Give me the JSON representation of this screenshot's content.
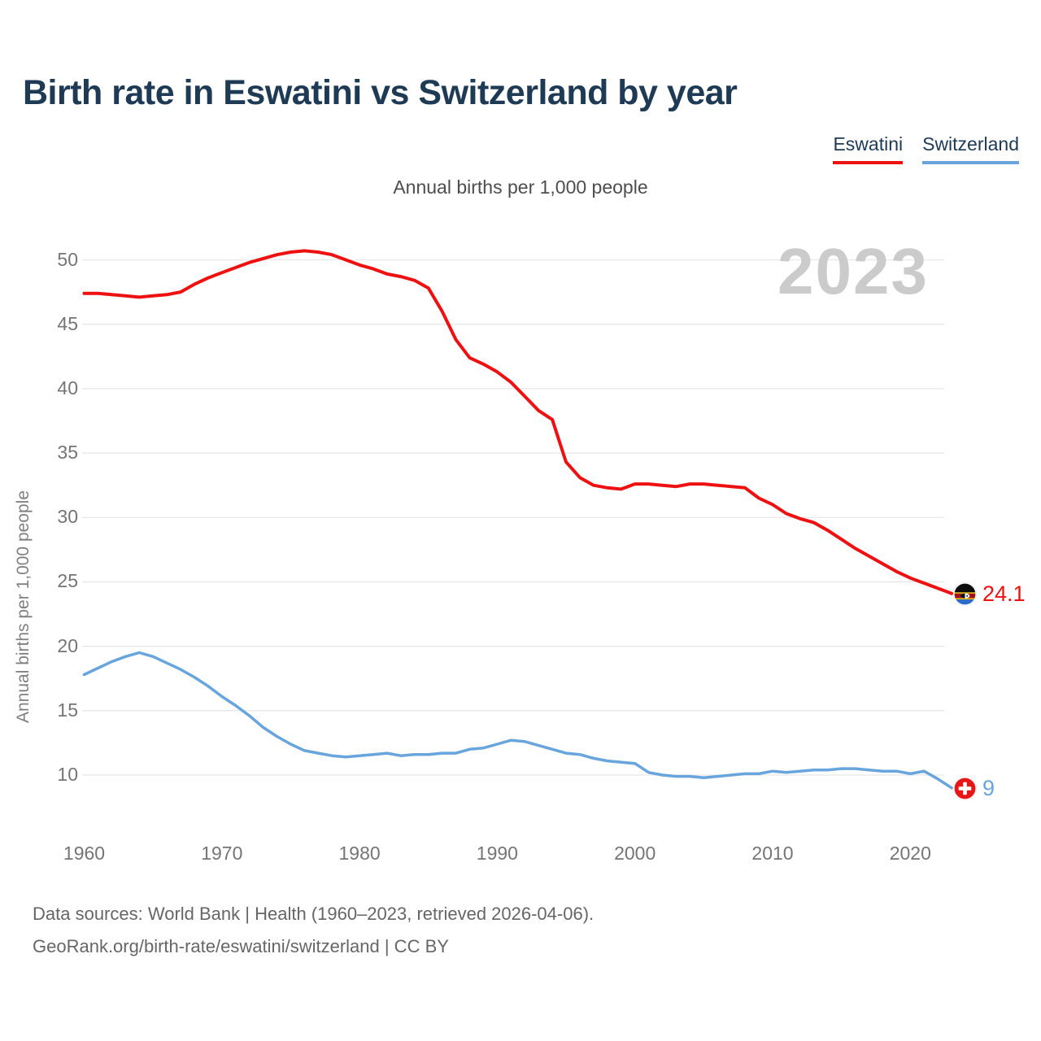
{
  "title": "Birth rate in Eswatini vs Switzerland by year",
  "subtitle": "Annual births per 1,000 people",
  "watermark_year": "2023",
  "legend": [
    {
      "label": "Eswatini",
      "color": "#ee1111"
    },
    {
      "label": "Switzerland",
      "color": "#68a5dc"
    }
  ],
  "colors": {
    "title_navy": "#1e3a55",
    "eswatini_red": "#ee1111",
    "switzerland_blue": "#68a5dc",
    "gridline": "#e7e7e7",
    "axis_text": "#757575",
    "watermark_gray": "#cbcbcb"
  },
  "icons": {
    "eswatini_marker": "eswatini-flag-icon",
    "switzerland_marker": "switzerland-flag-icon"
  },
  "footer": {
    "line1": "Data sources: World Bank | Health (1960–2023, retrieved 2026-04-06).",
    "line2": "GeoRank.org/birth-rate/eswatini/switzerland | CC BY"
  },
  "chart_data": {
    "type": "line",
    "title": "Birth rate in Eswatini vs Switzerland by year",
    "ylabel": "Annual births per 1,000 people",
    "xlabel": "",
    "grid": true,
    "legend_position": "top-right",
    "xlim": [
      1960,
      2023
    ],
    "ylim": [
      8.5,
      52
    ],
    "yticks": [
      10,
      15,
      20,
      25,
      30,
      35,
      40,
      45,
      50
    ],
    "xticks": [
      1960,
      1970,
      1980,
      1990,
      2000,
      2010,
      2020
    ],
    "x": [
      1960,
      1961,
      1962,
      1963,
      1964,
      1965,
      1966,
      1967,
      1968,
      1969,
      1970,
      1971,
      1972,
      1973,
      1974,
      1975,
      1976,
      1977,
      1978,
      1979,
      1980,
      1981,
      1982,
      1983,
      1984,
      1985,
      1986,
      1987,
      1988,
      1989,
      1990,
      1991,
      1992,
      1993,
      1994,
      1995,
      1996,
      1997,
      1998,
      1999,
      2000,
      2001,
      2002,
      2003,
      2004,
      2005,
      2006,
      2007,
      2008,
      2009,
      2010,
      2011,
      2012,
      2013,
      2014,
      2015,
      2016,
      2017,
      2018,
      2019,
      2020,
      2021,
      2022,
      2023
    ],
    "series": [
      {
        "name": "Eswatini",
        "color": "#ee1111",
        "end_label": "24.1",
        "end_value": 24.1,
        "values": [
          47.4,
          47.4,
          47.3,
          47.2,
          47.1,
          47.2,
          47.3,
          47.5,
          48.1,
          48.6,
          49.0,
          49.4,
          49.8,
          50.1,
          50.4,
          50.6,
          50.7,
          50.6,
          50.4,
          50.0,
          49.6,
          49.3,
          48.9,
          48.7,
          48.4,
          47.8,
          46.0,
          43.8,
          42.4,
          41.9,
          41.3,
          40.5,
          39.4,
          38.3,
          37.6,
          34.3,
          33.1,
          32.5,
          32.3,
          32.2,
          32.6,
          32.6,
          32.5,
          32.4,
          32.6,
          32.6,
          32.5,
          32.4,
          32.3,
          31.5,
          31.0,
          30.3,
          29.9,
          29.6,
          29.0,
          28.3,
          27.6,
          27.0,
          26.4,
          25.8,
          25.3,
          24.9,
          24.5,
          24.1
        ]
      },
      {
        "name": "Switzerland",
        "color": "#68a5dc",
        "end_label": "9",
        "end_value": 9,
        "values": [
          17.8,
          18.3,
          18.8,
          19.2,
          19.5,
          19.2,
          18.7,
          18.2,
          17.6,
          16.9,
          16.1,
          15.4,
          14.6,
          13.7,
          13.0,
          12.4,
          11.9,
          11.7,
          11.5,
          11.4,
          11.5,
          11.6,
          11.7,
          11.5,
          11.6,
          11.6,
          11.7,
          11.7,
          12.0,
          12.1,
          12.4,
          12.7,
          12.6,
          12.3,
          12.0,
          11.7,
          11.6,
          11.3,
          11.1,
          11.0,
          10.9,
          10.2,
          10.0,
          9.9,
          9.9,
          9.8,
          9.9,
          10.0,
          10.1,
          10.1,
          10.3,
          10.2,
          10.3,
          10.4,
          10.4,
          10.5,
          10.5,
          10.4,
          10.3,
          10.3,
          10.1,
          10.3,
          9.7,
          9.0
        ]
      }
    ]
  }
}
